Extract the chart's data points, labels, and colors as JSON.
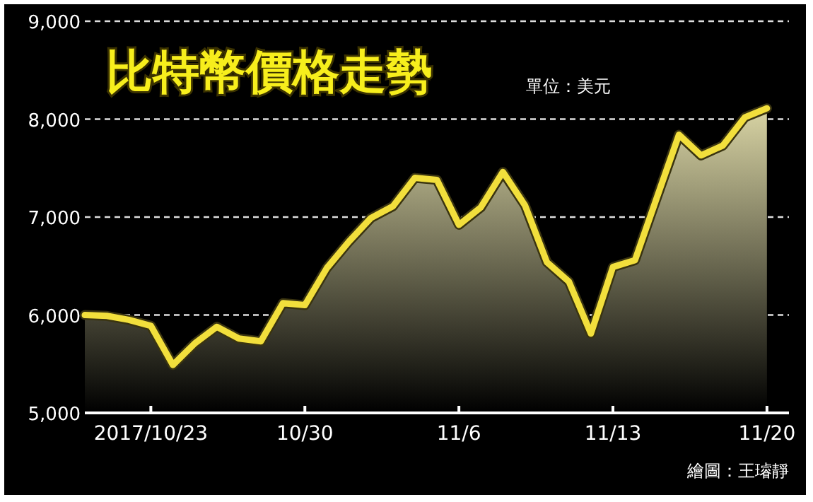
{
  "chart_data": {
    "type": "area",
    "title": "比特幣價格走勢",
    "subtitle": "單位：美元",
    "annotations": [
      "繪圖：王璿靜"
    ],
    "x": [
      "2017-10-20",
      "2017-10-21",
      "2017-10-22",
      "2017-10-23",
      "2017-10-24",
      "2017-10-25",
      "2017-10-26",
      "2017-10-27",
      "2017-10-28",
      "2017-10-29",
      "2017-10-30",
      "2017-10-31",
      "2017-11-01",
      "2017-11-02",
      "2017-11-03",
      "2017-11-04",
      "2017-11-05",
      "2017-11-06",
      "2017-11-07",
      "2017-11-08",
      "2017-11-09",
      "2017-11-10",
      "2017-11-11",
      "2017-11-12",
      "2017-11-13",
      "2017-11-14",
      "2017-11-15",
      "2017-11-16",
      "2017-11-17",
      "2017-11-18",
      "2017-11-19",
      "2017-11-20"
    ],
    "values": [
      6000,
      5990,
      5950,
      5890,
      5490,
      5710,
      5880,
      5760,
      5730,
      6120,
      6100,
      6480,
      6750,
      6990,
      7110,
      7400,
      7380,
      6920,
      7100,
      7460,
      7120,
      6540,
      6340,
      5810,
      6490,
      6560,
      7200,
      7840,
      7630,
      7730,
      8020,
      8110
    ],
    "color": "#f2df3c",
    "xlim": [
      "2017-10-20",
      "2017-11-21"
    ],
    "ylim": [
      5000,
      9000
    ],
    "xticks": [
      {
        "value": "2017-10-23",
        "label": "2017/10/23"
      },
      {
        "value": "2017-10-30",
        "label": "10/30"
      },
      {
        "value": "2017-11-06",
        "label": "11/6"
      },
      {
        "value": "2017-11-13",
        "label": "11/13"
      },
      {
        "value": "2017-11-20",
        "label": "11/20"
      }
    ],
    "yticks": [
      {
        "value": 5000,
        "label": "5,000"
      },
      {
        "value": 6000,
        "label": "6,000"
      },
      {
        "value": 7000,
        "label": "7,000"
      },
      {
        "value": 8000,
        "label": "8,000"
      },
      {
        "value": 9000,
        "label": "9,000"
      }
    ],
    "grid": "y"
  }
}
